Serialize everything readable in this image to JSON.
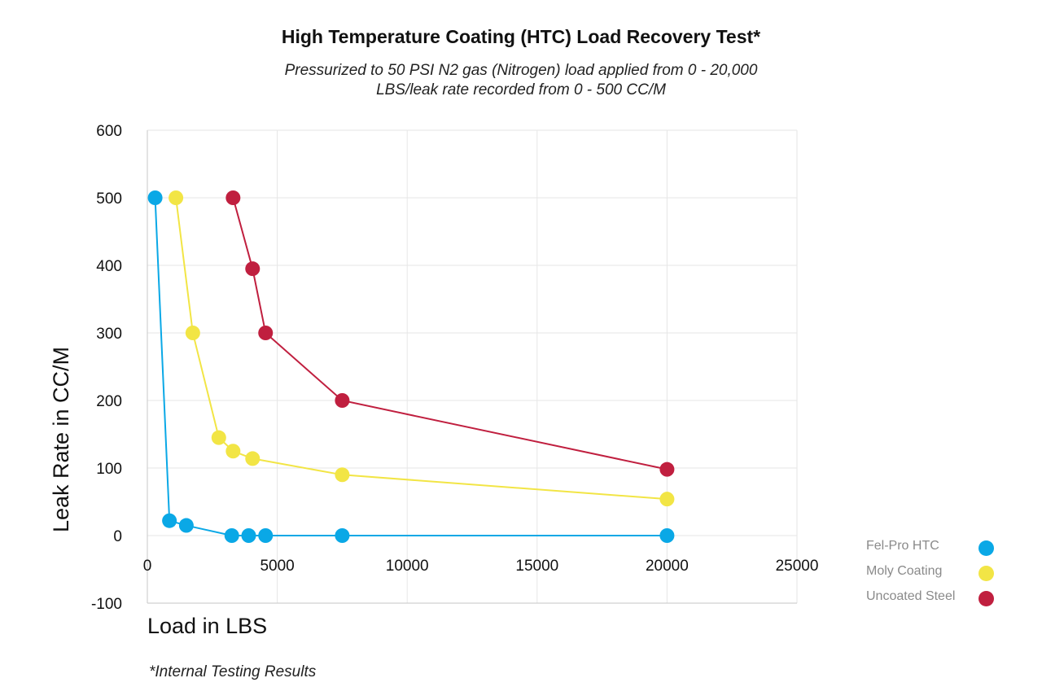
{
  "chart_data": {
    "type": "scatter",
    "title": "High Temperature Coating (HTC) Load Recovery Test*",
    "subtitle_lines": [
      "Pressurized to 50 PSI N2 gas (Nitrogen) load applied from 0 - 20,000",
      "LBS/leak rate recorded  from 0 - 500 CC/M"
    ],
    "xlabel": "Load in LBS",
    "ylabel": "Leak Rate in CC/M",
    "xlim": [
      0,
      25000
    ],
    "ylim": [
      -100,
      600
    ],
    "x_ticks": [
      0,
      5000,
      10000,
      15000,
      20000,
      25000
    ],
    "x_tick_labels": [
      "0",
      "5000",
      "10000",
      "15000",
      "20000",
      "25000"
    ],
    "y_ticks": [
      600,
      500,
      400,
      300,
      200,
      100,
      0,
      -100
    ],
    "y_tick_labels": [
      "600",
      "500",
      "400",
      "300",
      "200",
      "100",
      "0",
      "-100"
    ],
    "grid": true,
    "legend_position": "bottom-right",
    "footnote": "*Internal Testing Results",
    "series": [
      {
        "name": "Fel-Pro HTC",
        "color": "#0aa8e6",
        "x": [
          300,
          850,
          1500,
          3250,
          3900,
          4550,
          7500,
          20000
        ],
        "y": [
          500,
          22,
          15,
          0,
          0,
          0,
          0,
          0
        ]
      },
      {
        "name": "Moly Coating",
        "color": "#f2e545",
        "x": [
          1100,
          1750,
          2750,
          3300,
          4050,
          7500,
          20000
        ],
        "y": [
          500,
          300,
          145,
          125,
          114,
          90,
          54
        ]
      },
      {
        "name": "Uncoated Steel",
        "color": "#c01f3f",
        "x": [
          3300,
          4050,
          4550,
          7500,
          20000
        ],
        "y": [
          500,
          395,
          300,
          200,
          98
        ]
      }
    ]
  }
}
